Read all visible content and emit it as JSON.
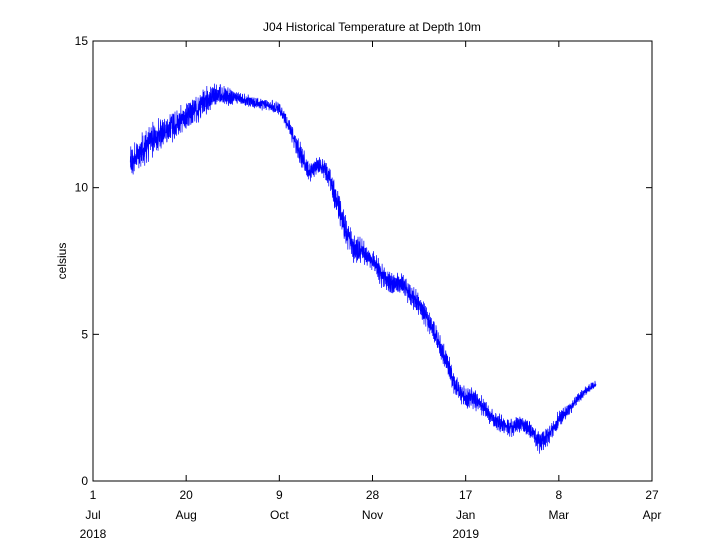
{
  "chart_data": {
    "type": "line",
    "title": "J04 Historical Temperature at Depth 10m",
    "xlabel": "",
    "ylabel": "celsius",
    "x_range": [
      "2018-07-01",
      "2019-04-27"
    ],
    "ylim": [
      0,
      15
    ],
    "grid": false,
    "y_ticks": [
      0,
      5,
      10,
      15
    ],
    "x_ticks": [
      {
        "date": "2018-07-01",
        "day": "1",
        "month": "Jul",
        "year": "2018"
      },
      {
        "date": "2018-08-20",
        "day": "20",
        "month": "Aug",
        "year": ""
      },
      {
        "date": "2018-10-09",
        "day": "9",
        "month": "Oct",
        "year": ""
      },
      {
        "date": "2018-11-28",
        "day": "28",
        "month": "Nov",
        "year": ""
      },
      {
        "date": "2019-01-17",
        "day": "17",
        "month": "Jan",
        "year": "2019"
      },
      {
        "date": "2019-03-08",
        "day": "8",
        "month": "Mar",
        "year": ""
      },
      {
        "date": "2019-04-27",
        "day": "27",
        "month": "Apr",
        "year": ""
      }
    ],
    "series": [
      {
        "color": "#0000ff",
        "x": [
          "2018-07-21",
          "2018-07-26",
          "2018-08-01",
          "2018-08-08",
          "2018-08-15",
          "2018-08-22",
          "2018-08-29",
          "2018-09-05",
          "2018-09-12",
          "2018-09-19",
          "2018-09-26",
          "2018-10-03",
          "2018-10-09",
          "2018-10-15",
          "2018-10-20",
          "2018-10-25",
          "2018-10-30",
          "2018-11-04",
          "2018-11-09",
          "2018-11-14",
          "2018-11-18",
          "2018-11-23",
          "2018-11-28",
          "2018-12-03",
          "2018-12-08",
          "2018-12-13",
          "2018-12-18",
          "2018-12-23",
          "2018-12-28",
          "2019-01-02",
          "2019-01-07",
          "2019-01-12",
          "2019-01-17",
          "2019-01-22",
          "2019-01-27",
          "2019-02-01",
          "2019-02-06",
          "2019-02-11",
          "2019-02-16",
          "2019-02-21",
          "2019-02-26",
          "2019-03-03",
          "2019-03-08",
          "2019-03-13",
          "2019-03-18",
          "2019-03-23",
          "2019-03-28"
        ],
        "y": [
          10.8,
          11.2,
          11.6,
          11.9,
          12.2,
          12.5,
          12.9,
          13.2,
          13.1,
          13.0,
          12.9,
          12.8,
          12.7,
          12.0,
          11.2,
          10.5,
          10.8,
          10.5,
          9.5,
          8.5,
          7.9,
          7.8,
          7.5,
          7.0,
          6.7,
          6.8,
          6.4,
          6.0,
          5.5,
          4.8,
          4.0,
          3.2,
          2.8,
          2.8,
          2.5,
          2.1,
          1.9,
          1.8,
          2.0,
          1.7,
          1.3,
          1.6,
          2.1,
          2.4,
          2.8,
          3.1,
          3.3
        ],
        "noise_amplitude": [
          0.6,
          0.6,
          0.6,
          0.5,
          0.5,
          0.5,
          0.5,
          0.4,
          0.3,
          0.2,
          0.2,
          0.2,
          0.2,
          0.3,
          0.4,
          0.3,
          0.3,
          0.4,
          0.5,
          0.5,
          0.5,
          0.4,
          0.4,
          0.4,
          0.4,
          0.4,
          0.4,
          0.4,
          0.4,
          0.4,
          0.4,
          0.4,
          0.4,
          0.4,
          0.3,
          0.3,
          0.3,
          0.3,
          0.3,
          0.3,
          0.4,
          0.3,
          0.3,
          0.2,
          0.2,
          0.15,
          0.15
        ]
      }
    ]
  }
}
